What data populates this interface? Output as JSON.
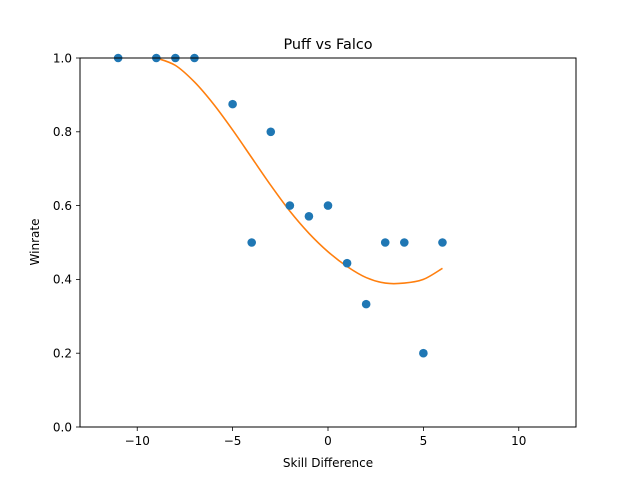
{
  "chart_data": {
    "type": "scatter",
    "title": "Puff vs Falco",
    "xlabel": "Skill Difference",
    "ylabel": "Winrate",
    "xlim": [
      -13,
      13
    ],
    "ylim": [
      0,
      1
    ],
    "xticks": [
      -10,
      -5,
      0,
      5,
      10
    ],
    "xtick_labels": [
      "−10",
      "−5",
      "0",
      "5",
      "10"
    ],
    "yticks": [
      0.0,
      0.2,
      0.4,
      0.6,
      0.8,
      1.0
    ],
    "ytick_labels": [
      "0.0",
      "0.2",
      "0.4",
      "0.6",
      "0.8",
      "1.0"
    ],
    "grid": false,
    "series": [
      {
        "type": "scatter",
        "color": "#1f77b4",
        "x": [
          -11,
          -9,
          -8,
          -7,
          -5,
          -4,
          -3,
          -2,
          -1,
          0,
          1,
          2,
          3,
          4,
          5,
          6
        ],
        "y": [
          1.0,
          1.0,
          1.0,
          1.0,
          0.875,
          0.5,
          0.8,
          0.6,
          0.571,
          0.6,
          0.444,
          0.333,
          0.5,
          0.5,
          0.2,
          0.5
        ]
      },
      {
        "type": "line",
        "color": "#ff7f0e",
        "x": [
          -9,
          -8,
          -7,
          -6,
          -5,
          -4,
          -3,
          -2,
          -1,
          0,
          1,
          2,
          3,
          4,
          5,
          6
        ],
        "y": [
          1.0,
          0.98,
          0.935,
          0.875,
          0.805,
          0.73,
          0.655,
          0.585,
          0.525,
          0.475,
          0.435,
          0.405,
          0.39,
          0.39,
          0.4,
          0.43
        ]
      }
    ]
  }
}
